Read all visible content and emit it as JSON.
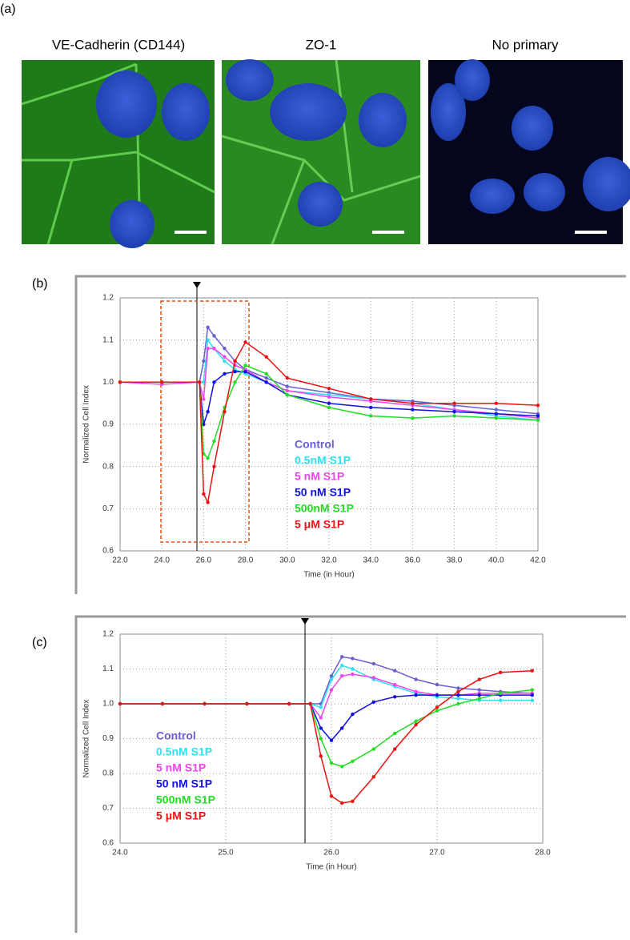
{
  "figure": {
    "panel_label": "(a)",
    "images": [
      {
        "title": "VE-Cadherin (CD144)"
      },
      {
        "title": "ZO-1"
      },
      {
        "title": "No primary"
      }
    ]
  },
  "chart_data": [
    {
      "type": "line",
      "panel_label": "(b)",
      "x_label": "Time (in Hour)",
      "y_label": "Normalized Cell Index",
      "x": [
        22,
        24,
        25.8,
        26,
        26.2,
        26.5,
        27,
        27.5,
        28,
        29,
        30,
        32,
        34,
        36,
        38,
        40,
        42
      ],
      "xlim": [
        22,
        42
      ],
      "xticks": [
        {
          "value": 22,
          "label": "22.0"
        },
        {
          "value": 24,
          "label": "24.0"
        },
        {
          "value": 26,
          "label": "26.0"
        },
        {
          "value": 28,
          "label": "28.0"
        },
        {
          "value": 30,
          "label": "30.0"
        },
        {
          "value": 32,
          "label": "32.0"
        },
        {
          "value": 34,
          "label": "34.0"
        },
        {
          "value": 36,
          "label": "36.0"
        },
        {
          "value": 38,
          "label": "38.0"
        },
        {
          "value": 40,
          "label": "40.0"
        },
        {
          "value": 42,
          "label": "42.0"
        }
      ],
      "ylim": [
        0.6,
        1.2
      ],
      "yticks": [
        0.6,
        0.7,
        0.8,
        0.9,
        {
          "value": 1,
          "label": "1.0"
        },
        1.1,
        1.2
      ],
      "grid": true,
      "series": [
        {
          "name": "Control",
          "color": "#6a5fd2",
          "values": [
            1.0,
            1.0,
            1.0,
            1.05,
            1.13,
            1.11,
            1.08,
            1.05,
            1.03,
            1.01,
            0.99,
            0.975,
            0.96,
            0.955,
            0.945,
            0.935,
            0.925
          ]
        },
        {
          "name": "0.5nM S1P",
          "color": "#2ee0f0",
          "values": [
            1.0,
            1.0,
            1.0,
            1.0,
            1.1,
            1.08,
            1.05,
            1.03,
            1.02,
            1.0,
            0.98,
            0.97,
            0.96,
            0.95,
            0.935,
            0.92,
            0.91
          ]
        },
        {
          "name": "5 nM S1P",
          "color": "#ee44ee",
          "values": [
            1.0,
            0.995,
            1.0,
            0.96,
            1.08,
            1.08,
            1.06,
            1.04,
            1.03,
            1.0,
            0.98,
            0.965,
            0.955,
            0.945,
            0.935,
            0.925,
            0.915
          ]
        },
        {
          "name": "50 nM S1P",
          "color": "#1010e0",
          "values": [
            1.0,
            1.0,
            1.0,
            0.9,
            0.93,
            1.0,
            1.02,
            1.025,
            1.025,
            1.0,
            0.97,
            0.95,
            0.94,
            0.935,
            0.93,
            0.925,
            0.92
          ]
        },
        {
          "name": "500nM S1P",
          "color": "#22dd22",
          "values": [
            1.0,
            1.0,
            1.0,
            0.83,
            0.82,
            0.86,
            0.94,
            1.0,
            1.04,
            1.02,
            0.97,
            0.94,
            0.92,
            0.915,
            0.92,
            0.915,
            0.91
          ]
        },
        {
          "name": "5 μM S1P",
          "color": "#ee1111",
          "values": [
            1.0,
            1.0,
            1.0,
            0.735,
            0.715,
            0.8,
            0.93,
            1.05,
            1.095,
            1.06,
            1.01,
            0.985,
            0.96,
            0.95,
            0.95,
            0.95,
            0.945
          ]
        }
      ]
    },
    {
      "type": "line",
      "panel_label": "(c)",
      "x_label": "Time (in Hour)",
      "y_label": "Normalized Cell Index",
      "x": [
        24,
        24.4,
        24.8,
        25.2,
        25.6,
        25.8,
        25.9,
        26,
        26.1,
        26.2,
        26.4,
        26.6,
        26.8,
        27,
        27.2,
        27.4,
        27.6,
        27.9
      ],
      "xlim": [
        24,
        28
      ],
      "xticks": [
        {
          "value": 24,
          "label": "24.0"
        },
        {
          "value": 25,
          "label": "25.0"
        },
        {
          "value": 26,
          "label": "26.0"
        },
        {
          "value": 27,
          "label": "27.0"
        },
        {
          "value": 28,
          "label": "28.0"
        }
      ],
      "ylim": [
        0.6,
        1.2
      ],
      "yticks": [
        0.6,
        0.7,
        0.8,
        0.9,
        {
          "value": 1,
          "label": "1.0"
        },
        1.1,
        1.2
      ],
      "grid": true,
      "series": [
        {
          "name": "Control",
          "color": "#6a5fd2",
          "values": [
            1,
            1,
            1,
            1,
            1,
            1,
            1.0,
            1.08,
            1.135,
            1.13,
            1.115,
            1.095,
            1.07,
            1.055,
            1.045,
            1.04,
            1.035,
            1.03
          ]
        },
        {
          "name": "0.5nM S1P",
          "color": "#2ee0f0",
          "values": [
            1,
            1,
            1,
            1,
            1,
            1,
            0.99,
            1.07,
            1.11,
            1.1,
            1.07,
            1.05,
            1.03,
            1.02,
            1.015,
            1.01,
            1.01,
            1.01
          ]
        },
        {
          "name": "5 nM S1P",
          "color": "#ee44ee",
          "values": [
            1,
            1,
            1,
            1,
            1,
            1,
            0.96,
            1.04,
            1.08,
            1.085,
            1.075,
            1.055,
            1.035,
            1.025,
            1.025,
            1.03,
            1.03,
            1.03
          ]
        },
        {
          "name": "50 nM S1P",
          "color": "#1010e0",
          "values": [
            1,
            1,
            1,
            1,
            1,
            1,
            0.93,
            0.895,
            0.93,
            0.97,
            1.005,
            1.02,
            1.025,
            1.025,
            1.025,
            1.025,
            1.025,
            1.025
          ]
        },
        {
          "name": "500nM S1P",
          "color": "#22dd22",
          "values": [
            1,
            1,
            1,
            1,
            1,
            1,
            0.9,
            0.83,
            0.82,
            0.835,
            0.87,
            0.915,
            0.95,
            0.98,
            1.0,
            1.015,
            1.03,
            1.04
          ]
        },
        {
          "name": "5 μM S1P",
          "color": "#ee1111",
          "values": [
            1,
            1,
            1,
            1,
            1,
            1,
            0.85,
            0.735,
            0.715,
            0.72,
            0.79,
            0.87,
            0.94,
            0.99,
            1.035,
            1.07,
            1.09,
            1.095
          ]
        }
      ]
    }
  ]
}
